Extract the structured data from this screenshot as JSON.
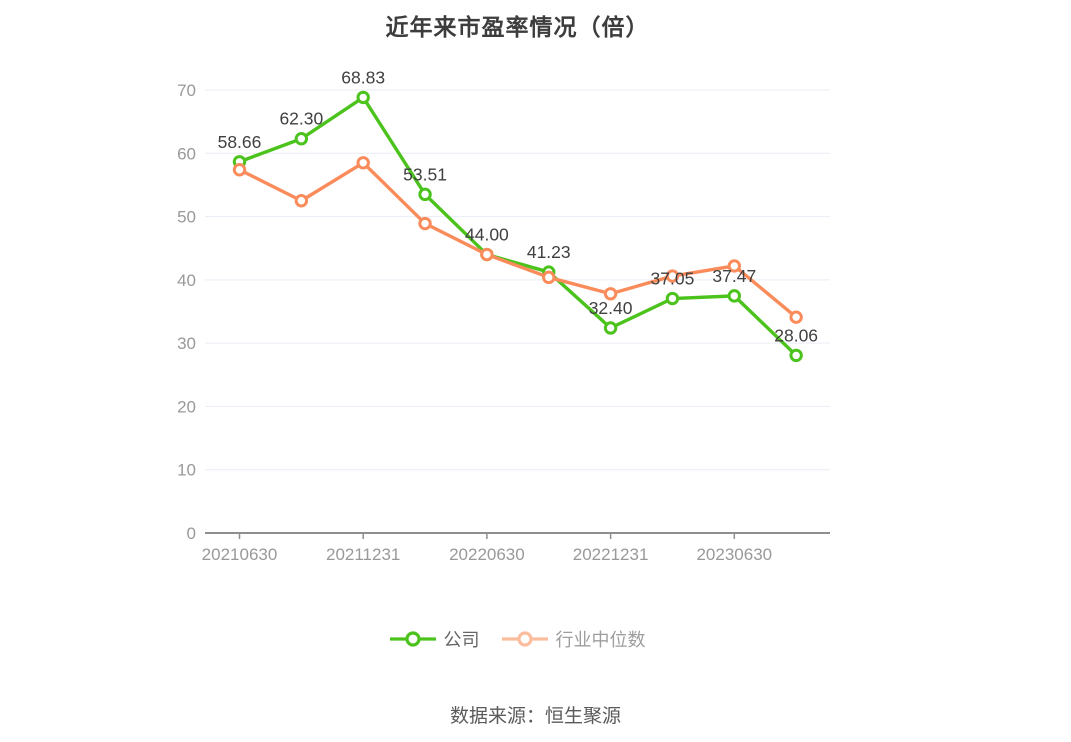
{
  "title": "近年来市盈率情况（倍）",
  "source": "数据来源：恒生聚源",
  "legend": [
    {
      "label": "公司",
      "icon_color": "#4cc31d",
      "text_color": "#666666"
    },
    {
      "label": "行业中位数",
      "icon_color": "#fcbd9e",
      "text_color": "#9e9e9e"
    }
  ],
  "colors": {
    "background": "#ffffff",
    "title_text": "#3d3d3d",
    "axis_line": "#8f8f8f",
    "grid_line": "#e9eef5",
    "axis_label": "#999999",
    "value_label": "#404040",
    "source_text": "#5a5a5a",
    "company_green": "#4cc31d",
    "industry_orange": "#fa8c5c"
  },
  "chart_data": {
    "type": "line",
    "title": "近年来市盈率情况（倍）",
    "categories": [
      "20210630",
      "",
      "20211231",
      "",
      "20220630",
      "",
      "20221231",
      "",
      "20230630",
      ""
    ],
    "x_tick_labels": [
      "20210630",
      "20211231",
      "20220630",
      "20221231",
      "20230630"
    ],
    "series": [
      {
        "name": "公司",
        "color": "#4cc31d",
        "values": [
          58.66,
          62.3,
          68.83,
          53.51,
          44.0,
          41.23,
          32.4,
          37.05,
          37.47,
          28.06
        ],
        "show_labels": true
      },
      {
        "name": "行业中位数",
        "color": "#fa8c5c",
        "values": [
          57.4,
          52.5,
          58.5,
          48.9,
          44.0,
          40.4,
          37.8,
          40.6,
          42.2,
          34.1
        ],
        "show_labels": false
      }
    ],
    "ylim": [
      0,
      70
    ],
    "y_ticks": [
      0,
      10,
      20,
      30,
      40,
      50,
      60,
      70
    ],
    "grid": true,
    "legend_position": "bottom",
    "value_labels_series": "公司"
  }
}
